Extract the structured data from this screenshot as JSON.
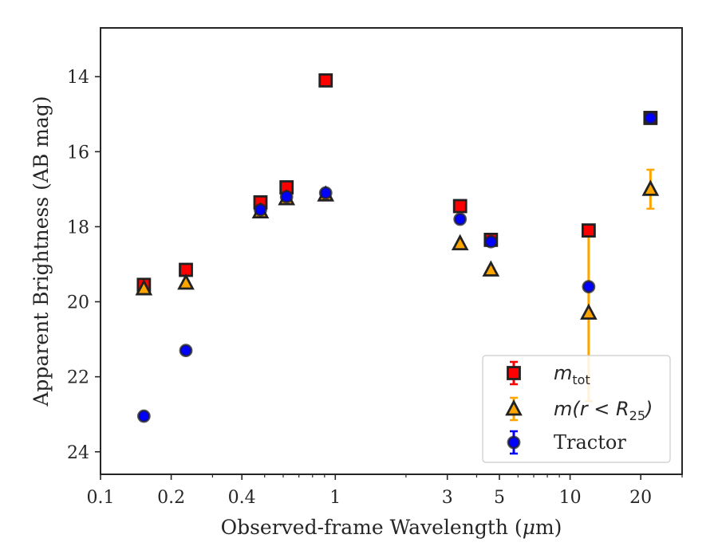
{
  "chart_data": {
    "type": "scatter",
    "xlabel_parts": [
      "Observed-frame Wavelength (",
      "μ",
      "m)"
    ],
    "ylabel": "Apparent Brightness (AB mag)",
    "xscale": "log",
    "xlim": [
      0.1,
      30
    ],
    "ylim": [
      24.6,
      12.7
    ],
    "y_inverted": true,
    "x_ticks": [
      {
        "value": 0.1,
        "label": "0.1"
      },
      {
        "value": 0.2,
        "label": "0.2"
      },
      {
        "value": 0.4,
        "label": "0.4"
      },
      {
        "value": 1,
        "label": "1"
      },
      {
        "value": 3,
        "label": "3"
      },
      {
        "value": 5,
        "label": "5"
      },
      {
        "value": 10,
        "label": "10"
      },
      {
        "value": 20,
        "label": "20"
      }
    ],
    "x_minor_ticks": [
      0.3,
      0.5,
      0.6,
      0.7,
      0.8,
      0.9,
      2,
      4,
      6,
      7,
      8,
      9,
      30
    ],
    "y_ticks": [
      {
        "value": 14,
        "label": "14"
      },
      {
        "value": 16,
        "label": "16"
      },
      {
        "value": 18,
        "label": "18"
      },
      {
        "value": 20,
        "label": "20"
      },
      {
        "value": 22,
        "label": "22"
      },
      {
        "value": 24,
        "label": "24"
      }
    ],
    "legend_position": "lower right",
    "series": [
      {
        "marker": "square",
        "face_color": "#ff0000",
        "edge_color": "#222222",
        "error_color": "#ff0000",
        "legend_math": "m",
        "legend_sub": "tot",
        "points": [
          {
            "x": 0.153,
            "y": 19.55,
            "err": 0.05
          },
          {
            "x": 0.231,
            "y": 19.15,
            "err": 0.05
          },
          {
            "x": 0.48,
            "y": 17.35,
            "err": 0.03
          },
          {
            "x": 0.62,
            "y": 16.95,
            "err": 0.03
          },
          {
            "x": 0.91,
            "y": 14.1,
            "err": 0.03
          },
          {
            "x": 3.4,
            "y": 17.45,
            "err": 0.03
          },
          {
            "x": 4.6,
            "y": 18.35,
            "err": 0.05
          },
          {
            "x": 12.0,
            "y": 18.1,
            "err": 0.05
          },
          {
            "x": 22.0,
            "y": 15.1,
            "err": 0.05
          }
        ]
      },
      {
        "marker": "triangle",
        "face_color": "#ffa500",
        "edge_color": "#222222",
        "error_color": "#ffa500",
        "legend_math": "m(r < R",
        "legend_sub": "25",
        "legend_tail": ")",
        "points": [
          {
            "x": 0.153,
            "y": 19.65,
            "err": 0.05
          },
          {
            "x": 0.231,
            "y": 19.5,
            "err": 0.05
          },
          {
            "x": 0.48,
            "y": 17.6,
            "err": 0.03
          },
          {
            "x": 0.62,
            "y": 17.25,
            "err": 0.03
          },
          {
            "x": 0.91,
            "y": 17.15,
            "err": 0.03
          },
          {
            "x": 3.4,
            "y": 18.45,
            "err": 0.03
          },
          {
            "x": 4.6,
            "y": 19.15,
            "err": 0.05
          },
          {
            "x": 12.0,
            "y": 20.3,
            "err": 2.35
          },
          {
            "x": 22.0,
            "y": 17.0,
            "err": 0.52
          }
        ]
      },
      {
        "marker": "circle",
        "face_color": "#0000ff",
        "edge_color": "#222222",
        "error_color": "#0000ff",
        "legend_text": "Tractor",
        "points": [
          {
            "x": 0.153,
            "y": 23.05,
            "err": 0.05
          },
          {
            "x": 0.231,
            "y": 21.3,
            "err": 0.05
          },
          {
            "x": 0.48,
            "y": 17.55,
            "err": 0.03
          },
          {
            "x": 0.62,
            "y": 17.2,
            "err": 0.03
          },
          {
            "x": 0.91,
            "y": 17.1,
            "err": 0.03
          },
          {
            "x": 3.4,
            "y": 17.8,
            "err": 0.03
          },
          {
            "x": 4.6,
            "y": 18.4,
            "err": 0.05
          },
          {
            "x": 12.0,
            "y": 19.6,
            "err": 0.05
          },
          {
            "x": 22.0,
            "y": 15.1,
            "err": 0.05
          }
        ]
      }
    ]
  }
}
